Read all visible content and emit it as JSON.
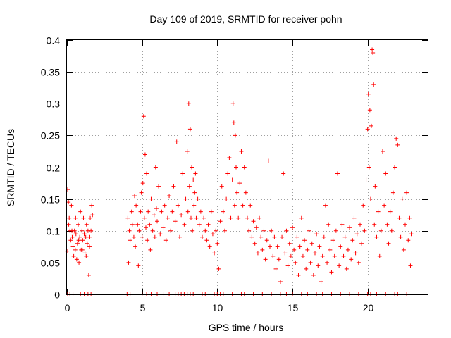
{
  "chart_data": {
    "type": "scatter",
    "title": "Day 109 of 2019, SRMTID for receiver pohn",
    "xlabel": "GPS time / hours",
    "ylabel": "SRMTID / TECUs",
    "xlim": [
      0,
      24
    ],
    "ylim": [
      0,
      0.4
    ],
    "xticks": [
      0,
      5,
      10,
      15,
      20
    ],
    "xtick_labels": [
      "0",
      "5",
      "10",
      "15",
      "20"
    ],
    "yticks": [
      0,
      0.05,
      0.1,
      0.15,
      0.2,
      0.25,
      0.3,
      0.35,
      0.4
    ],
    "ytick_labels": [
      "0",
      "0.05",
      "0.1",
      "0.15",
      "0.2",
      "0.25",
      "0.3",
      "0.35",
      "0.4"
    ],
    "grid": true,
    "marker": "+",
    "color": "#ff0000",
    "series": [
      {
        "name": "SRMTID",
        "points": [
          [
            0.0,
            0.068
          ],
          [
            0.05,
            0.165
          ],
          [
            0.1,
            0.145
          ],
          [
            0.15,
            0.12
          ],
          [
            0.2,
            0.1
          ],
          [
            0.25,
            0.085
          ],
          [
            0.3,
            0.14
          ],
          [
            0.35,
            0.09
          ],
          [
            0.4,
            0.075
          ],
          [
            0.45,
            0.06
          ],
          [
            0.5,
            0.1
          ],
          [
            0.55,
            0.07
          ],
          [
            0.6,
            0.095
          ],
          [
            0.65,
            0.055
          ],
          [
            0.7,
            0.08
          ],
          [
            0.75,
            0.11
          ],
          [
            0.8,
            0.05
          ],
          [
            0.85,
            0.09
          ],
          [
            0.9,
            0.13
          ],
          [
            0.95,
            0.07
          ],
          [
            1.0,
            0.1
          ],
          [
            1.05,
            0.085
          ],
          [
            1.1,
            0.12
          ],
          [
            1.15,
            0.095
          ],
          [
            1.2,
            0.065
          ],
          [
            1.25,
            0.09
          ],
          [
            1.3,
            0.11
          ],
          [
            1.35,
            0.08
          ],
          [
            1.4,
            0.1
          ],
          [
            1.45,
            0.03
          ],
          [
            1.5,
            0.075
          ],
          [
            1.55,
            0.12
          ],
          [
            1.6,
            0.1
          ],
          [
            1.65,
            0.14
          ],
          [
            1.7,
            0.125
          ],
          [
            0.12,
            0.11
          ],
          [
            0.33,
            0.1
          ],
          [
            0.58,
            0.12
          ],
          [
            0.78,
            0.085
          ],
          [
            1.02,
            0.07
          ],
          [
            1.28,
            0.06
          ],
          [
            1.52,
            0.09
          ],
          [
            4.05,
            0.12
          ],
          [
            4.1,
            0.05
          ],
          [
            4.15,
            0.1
          ],
          [
            4.2,
            0.085
          ],
          [
            4.3,
            0.13
          ],
          [
            4.35,
            0.11
          ],
          [
            4.45,
            0.09
          ],
          [
            4.5,
            0.155
          ],
          [
            4.55,
            0.075
          ],
          [
            4.6,
            0.14
          ],
          [
            4.7,
            0.11
          ],
          [
            4.75,
            0.045
          ],
          [
            4.8,
            0.1
          ],
          [
            4.9,
            0.13
          ],
          [
            4.95,
            0.16
          ],
          [
            5.0,
            0.09
          ],
          [
            5.05,
            0.175
          ],
          [
            5.1,
            0.28
          ],
          [
            5.15,
            0.12
          ],
          [
            5.2,
            0.22
          ],
          [
            5.25,
            0.105
          ],
          [
            5.3,
            0.19
          ],
          [
            5.35,
            0.085
          ],
          [
            5.4,
            0.13
          ],
          [
            5.5,
            0.11
          ],
          [
            5.55,
            0.07
          ],
          [
            5.6,
            0.15
          ],
          [
            5.7,
            0.1
          ],
          [
            5.8,
            0.125
          ],
          [
            5.85,
            0.09
          ],
          [
            5.9,
            0.2
          ],
          [
            5.95,
            0.135
          ],
          [
            6.0,
            0.115
          ],
          [
            6.1,
            0.17
          ],
          [
            6.2,
            0.095
          ],
          [
            6.3,
            0.13
          ],
          [
            6.4,
            0.105
          ],
          [
            6.5,
            0.14
          ],
          [
            6.6,
            0.085
          ],
          [
            6.7,
            0.12
          ],
          [
            6.8,
            0.155
          ],
          [
            6.9,
            0.1
          ],
          [
            7.0,
            0.13
          ],
          [
            7.1,
            0.17
          ],
          [
            7.2,
            0.115
          ],
          [
            7.3,
            0.24
          ],
          [
            7.4,
            0.14
          ],
          [
            7.5,
            0.09
          ],
          [
            7.6,
            0.125
          ],
          [
            7.7,
            0.19
          ],
          [
            7.8,
            0.11
          ],
          [
            7.9,
            0.15
          ],
          [
            8.0,
            0.225
          ],
          [
            8.05,
            0.13
          ],
          [
            8.1,
            0.3
          ],
          [
            8.15,
            0.17
          ],
          [
            8.2,
            0.26
          ],
          [
            8.25,
            0.12
          ],
          [
            8.3,
            0.2
          ],
          [
            8.35,
            0.1
          ],
          [
            8.4,
            0.18
          ],
          [
            8.45,
            0.14
          ],
          [
            8.5,
            0.16
          ],
          [
            8.55,
            0.19
          ],
          [
            8.6,
            0.12
          ],
          [
            8.7,
            0.15
          ],
          [
            8.8,
            0.11
          ],
          [
            8.9,
            0.13
          ],
          [
            9.0,
            0.09
          ],
          [
            9.1,
            0.12
          ],
          [
            9.2,
            0.1
          ],
          [
            9.3,
            0.085
          ],
          [
            9.4,
            0.11
          ],
          [
            9.5,
            0.075
          ],
          [
            9.6,
            0.13
          ],
          [
            9.7,
            0.095
          ],
          [
            9.8,
            0.065
          ],
          [
            9.9,
            0.1
          ],
          [
            10.0,
            0.08
          ],
          [
            10.1,
            0.04
          ],
          [
            10.2,
            0.115
          ],
          [
            10.3,
            0.17
          ],
          [
            10.4,
            0.13
          ],
          [
            10.5,
            0.1
          ],
          [
            10.6,
            0.15
          ],
          [
            10.7,
            0.19
          ],
          [
            10.8,
            0.215
          ],
          [
            10.9,
            0.12
          ],
          [
            11.0,
            0.18
          ],
          [
            11.05,
            0.3
          ],
          [
            11.1,
            0.27
          ],
          [
            11.15,
            0.14
          ],
          [
            11.2,
            0.25
          ],
          [
            11.25,
            0.2
          ],
          [
            11.3,
            0.16
          ],
          [
            11.4,
            0.12
          ],
          [
            11.5,
            0.175
          ],
          [
            11.6,
            0.225
          ],
          [
            11.7,
            0.14
          ],
          [
            11.8,
            0.2
          ],
          [
            11.9,
            0.16
          ],
          [
            12.0,
            0.12
          ],
          [
            12.1,
            0.1
          ],
          [
            12.2,
            0.14
          ],
          [
            12.3,
            0.09
          ],
          [
            12.4,
            0.115
          ],
          [
            12.5,
            0.08
          ],
          [
            12.6,
            0.105
          ],
          [
            12.7,
            0.065
          ],
          [
            12.8,
            0.12
          ],
          [
            12.9,
            0.09
          ],
          [
            13.0,
            0.07
          ],
          [
            13.1,
            0.1
          ],
          [
            13.2,
            0.055
          ],
          [
            13.3,
            0.085
          ],
          [
            13.4,
            0.21
          ],
          [
            13.5,
            0.075
          ],
          [
            13.6,
            0.1
          ],
          [
            13.7,
            0.06
          ],
          [
            13.8,
            0.09
          ],
          [
            13.9,
            0.04
          ],
          [
            14.0,
            0.075
          ],
          [
            14.1,
            0.055
          ],
          [
            14.2,
            0.02
          ],
          [
            14.3,
            0.09
          ],
          [
            14.4,
            0.19
          ],
          [
            14.5,
            0.065
          ],
          [
            14.6,
            0.1
          ],
          [
            14.7,
            0.045
          ],
          [
            14.8,
            0.08
          ],
          [
            14.9,
            0.06
          ],
          [
            15.0,
            0.105
          ],
          [
            15.1,
            0.07
          ],
          [
            15.2,
            0.05
          ],
          [
            15.3,
            0.09
          ],
          [
            15.4,
            0.03
          ],
          [
            15.5,
            0.075
          ],
          [
            15.6,
            0.12
          ],
          [
            15.7,
            0.06
          ],
          [
            15.8,
            0.085
          ],
          [
            15.9,
            0.04
          ],
          [
            16.0,
            0.07
          ],
          [
            16.1,
            0.1
          ],
          [
            16.2,
            0.05
          ],
          [
            16.3,
            0.08
          ],
          [
            16.4,
            0.03
          ],
          [
            16.5,
            0.065
          ],
          [
            16.6,
            0.095
          ],
          [
            16.7,
            0.045
          ],
          [
            16.8,
            0.075
          ],
          [
            16.9,
            0.02
          ],
          [
            17.0,
            0.06
          ],
          [
            17.1,
            0.09
          ],
          [
            17.2,
            0.14
          ],
          [
            17.3,
            0.05
          ],
          [
            17.4,
            0.11
          ],
          [
            17.5,
            0.07
          ],
          [
            17.6,
            0.035
          ],
          [
            17.7,
            0.085
          ],
          [
            17.8,
            0.06
          ],
          [
            17.9,
            0.1
          ],
          [
            18.0,
            0.19
          ],
          [
            18.1,
            0.045
          ],
          [
            18.2,
            0.075
          ],
          [
            18.3,
            0.11
          ],
          [
            18.4,
            0.06
          ],
          [
            18.5,
            0.09
          ],
          [
            18.6,
            0.04
          ],
          [
            18.7,
            0.07
          ],
          [
            18.8,
            0.105
          ],
          [
            18.9,
            0.055
          ],
          [
            19.0,
            0.085
          ],
          [
            19.1,
            0.12
          ],
          [
            19.2,
            0.065
          ],
          [
            19.3,
            0.095
          ],
          [
            19.4,
            0.05
          ],
          [
            19.5,
            0.11
          ],
          [
            19.6,
            0.08
          ],
          [
            19.7,
            0.14
          ],
          [
            19.8,
            0.1
          ],
          [
            19.9,
            0.18
          ],
          [
            20.0,
            0.26
          ],
          [
            20.05,
            0.315
          ],
          [
            20.1,
            0.2
          ],
          [
            20.15,
            0.29
          ],
          [
            20.2,
            0.15
          ],
          [
            20.25,
            0.265
          ],
          [
            20.3,
            0.385
          ],
          [
            20.35,
            0.38
          ],
          [
            20.4,
            0.33
          ],
          [
            20.45,
            0.11
          ],
          [
            20.5,
            0.17
          ],
          [
            20.6,
            0.09
          ],
          [
            20.7,
            0.13
          ],
          [
            20.8,
            0.06
          ],
          [
            20.9,
            0.1
          ],
          [
            21.0,
            0.225
          ],
          [
            21.1,
            0.14
          ],
          [
            21.2,
            0.19
          ],
          [
            21.3,
            0.11
          ],
          [
            21.4,
            0.08
          ],
          [
            21.5,
            0.13
          ],
          [
            21.6,
            0.1
          ],
          [
            21.7,
            0.16
          ],
          [
            21.8,
            0.2
          ],
          [
            21.9,
            0.245
          ],
          [
            22.0,
            0.235
          ],
          [
            22.1,
            0.12
          ],
          [
            22.2,
            0.09
          ],
          [
            22.3,
            0.15
          ],
          [
            22.4,
            0.07
          ],
          [
            22.5,
            0.11
          ],
          [
            22.6,
            0.16
          ],
          [
            22.7,
            0.085
          ],
          [
            22.8,
            0.12
          ],
          [
            22.85,
            0.045
          ],
          [
            22.9,
            0.095
          ],
          [
            0.05,
            0.0
          ],
          [
            0.2,
            0.0
          ],
          [
            0.4,
            0.0
          ],
          [
            0.9,
            0.0
          ],
          [
            1.15,
            0.0
          ],
          [
            1.4,
            0.0
          ],
          [
            1.6,
            0.0
          ],
          [
            4.0,
            0.0
          ],
          [
            4.2,
            0.0
          ],
          [
            5.0,
            0.0
          ],
          [
            5.3,
            0.0
          ],
          [
            5.6,
            0.0
          ],
          [
            6.0,
            0.0
          ],
          [
            6.4,
            0.0
          ],
          [
            6.8,
            0.0
          ],
          [
            7.2,
            0.0
          ],
          [
            7.4,
            0.0
          ],
          [
            7.6,
            0.0
          ],
          [
            7.8,
            0.0
          ],
          [
            8.0,
            0.0
          ],
          [
            8.2,
            0.0
          ],
          [
            8.4,
            0.0
          ],
          [
            9.0,
            0.0
          ],
          [
            9.2,
            0.0
          ],
          [
            9.8,
            0.0
          ],
          [
            10.0,
            0.0
          ],
          [
            10.2,
            0.0
          ],
          [
            10.4,
            0.0
          ],
          [
            11.0,
            0.0
          ],
          [
            11.6,
            0.0
          ],
          [
            11.8,
            0.0
          ],
          [
            12.4,
            0.0
          ],
          [
            13.0,
            0.0
          ],
          [
            13.6,
            0.0
          ],
          [
            14.2,
            0.0
          ],
          [
            14.6,
            0.0
          ],
          [
            15.0,
            0.0
          ],
          [
            15.6,
            0.0
          ],
          [
            16.0,
            0.0
          ],
          [
            16.6,
            0.0
          ],
          [
            17.0,
            0.0
          ],
          [
            17.6,
            0.0
          ],
          [
            18.2,
            0.0
          ],
          [
            18.8,
            0.0
          ],
          [
            19.4,
            0.0
          ],
          [
            20.0,
            0.0
          ],
          [
            20.2,
            0.0
          ],
          [
            20.6,
            0.0
          ],
          [
            21.2,
            0.0
          ],
          [
            21.8,
            0.0
          ],
          [
            22.0,
            0.0
          ],
          [
            22.6,
            0.0
          ]
        ]
      }
    ]
  }
}
